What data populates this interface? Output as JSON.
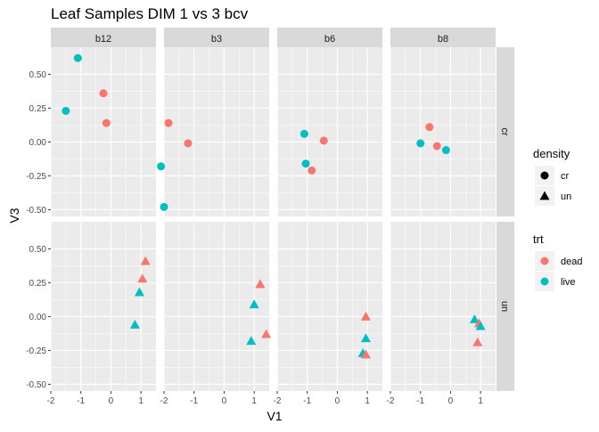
{
  "chart_data": {
    "type": "scatter",
    "title": "Leaf Samples DIM 1 vs 3 bcv",
    "xlabel": "V1",
    "ylabel": "V3",
    "xlim": [
      -2,
      1.5
    ],
    "ylim": [
      -0.55,
      0.7
    ],
    "x_ticks": [
      -2,
      -1,
      0,
      1
    ],
    "x_tick_labels": [
      "-2",
      "-1",
      "0",
      "1"
    ],
    "y_ticks": [
      -0.5,
      -0.25,
      0,
      0.25,
      0.5
    ],
    "y_tick_labels": [
      "-0.50",
      "-0.25",
      "0.00",
      "0.25",
      "0.50"
    ],
    "grid": true,
    "facet_columns": [
      "b12",
      "b3",
      "b6",
      "b8"
    ],
    "facet_rows": [
      "cr",
      "un"
    ],
    "colors": {
      "dead": "#F8766D",
      "live": "#00BFC4",
      "panel_bg": "#EBEBEB",
      "strip_bg": "#D9D9D9"
    },
    "legends": [
      {
        "title": "density",
        "position": "right",
        "entries": [
          {
            "label": "cr",
            "shape": "circle"
          },
          {
            "label": "un",
            "shape": "triangle"
          }
        ]
      },
      {
        "title": "trt",
        "position": "right",
        "entries": [
          {
            "label": "dead",
            "color_key": "dead"
          },
          {
            "label": "live",
            "color_key": "live"
          }
        ]
      }
    ],
    "points": [
      {
        "col": "b12",
        "row": "cr",
        "trt": "live",
        "x": -1.1,
        "y": 0.62
      },
      {
        "col": "b12",
        "row": "cr",
        "trt": "dead",
        "x": -0.25,
        "y": 0.36
      },
      {
        "col": "b12",
        "row": "cr",
        "trt": "live",
        "x": -1.5,
        "y": 0.23
      },
      {
        "col": "b12",
        "row": "cr",
        "trt": "dead",
        "x": -0.15,
        "y": 0.14
      },
      {
        "col": "b3",
        "row": "cr",
        "trt": "dead",
        "x": -1.85,
        "y": 0.14
      },
      {
        "col": "b3",
        "row": "cr",
        "trt": "dead",
        "x": -1.2,
        "y": -0.01
      },
      {
        "col": "b3",
        "row": "cr",
        "trt": "live",
        "x": -2.1,
        "y": -0.18
      },
      {
        "col": "b3",
        "row": "cr",
        "trt": "live",
        "x": -2.0,
        "y": -0.48
      },
      {
        "col": "b6",
        "row": "cr",
        "trt": "live",
        "x": -1.1,
        "y": 0.06
      },
      {
        "col": "b6",
        "row": "cr",
        "trt": "dead",
        "x": -0.45,
        "y": 0.01
      },
      {
        "col": "b6",
        "row": "cr",
        "trt": "live",
        "x": -1.05,
        "y": -0.16
      },
      {
        "col": "b6",
        "row": "cr",
        "trt": "dead",
        "x": -0.85,
        "y": -0.21
      },
      {
        "col": "b8",
        "row": "cr",
        "trt": "dead",
        "x": -0.7,
        "y": 0.11
      },
      {
        "col": "b8",
        "row": "cr",
        "trt": "live",
        "x": -1.0,
        "y": -0.01
      },
      {
        "col": "b8",
        "row": "cr",
        "trt": "dead",
        "x": -0.45,
        "y": -0.03
      },
      {
        "col": "b8",
        "row": "cr",
        "trt": "live",
        "x": -0.15,
        "y": -0.06
      },
      {
        "col": "b12",
        "row": "un",
        "trt": "dead",
        "x": 1.15,
        "y": 0.41
      },
      {
        "col": "b12",
        "row": "un",
        "trt": "dead",
        "x": 1.05,
        "y": 0.28
      },
      {
        "col": "b12",
        "row": "un",
        "trt": "live",
        "x": 0.95,
        "y": 0.18
      },
      {
        "col": "b12",
        "row": "un",
        "trt": "live",
        "x": 0.8,
        "y": -0.06
      },
      {
        "col": "b3",
        "row": "un",
        "trt": "dead",
        "x": 1.2,
        "y": 0.24
      },
      {
        "col": "b3",
        "row": "un",
        "trt": "live",
        "x": 1.0,
        "y": 0.09
      },
      {
        "col": "b3",
        "row": "un",
        "trt": "dead",
        "x": 1.4,
        "y": -0.13
      },
      {
        "col": "b3",
        "row": "un",
        "trt": "live",
        "x": 0.9,
        "y": -0.18
      },
      {
        "col": "b6",
        "row": "un",
        "trt": "dead",
        "x": 0.95,
        "y": 0.0
      },
      {
        "col": "b6",
        "row": "un",
        "trt": "live",
        "x": 0.95,
        "y": -0.16
      },
      {
        "col": "b6",
        "row": "un",
        "trt": "live",
        "x": 0.85,
        "y": -0.27
      },
      {
        "col": "b6",
        "row": "un",
        "trt": "dead",
        "x": 0.95,
        "y": -0.28
      },
      {
        "col": "b8",
        "row": "un",
        "trt": "live",
        "x": 0.8,
        "y": -0.02
      },
      {
        "col": "b8",
        "row": "un",
        "trt": "dead",
        "x": 0.95,
        "y": -0.05
      },
      {
        "col": "b8",
        "row": "un",
        "trt": "live",
        "x": 1.0,
        "y": -0.07
      },
      {
        "col": "b8",
        "row": "un",
        "trt": "dead",
        "x": 0.9,
        "y": -0.19
      }
    ]
  }
}
